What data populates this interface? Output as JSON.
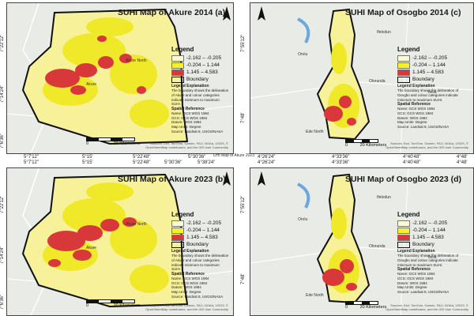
{
  "colors": {
    "low": "#fdfbd0",
    "mid": "#f2f12a",
    "high": "#d8383a",
    "boundary": "#111111"
  },
  "legend": {
    "title": "Legend",
    "classes": [
      {
        "label": "-2.162 – -0.205"
      },
      {
        "label": "-0.204 – 1.144"
      },
      {
        "label": "1.145 – 4.583"
      }
    ],
    "boundary": "Boundary",
    "explanation_title": "Legend Explanation",
    "explanation_akure": "The boundary shows the delineation of Akure and colour categories indicate minimum to maximum SUHI.",
    "explanation_osogbo": "The boundary shows the delineation of Osogbo and colour categories indicate minimum to maximum SUHI.",
    "spatial_title": "Spatial Reference",
    "spatial_lines": [
      "Name: GCS WGS 1984",
      "GCS: GCS WGS 1984",
      "Datum: WGS 1984",
      "Map Units: Degree"
    ],
    "source": "Source: Landsat 8, USGS/NASA"
  },
  "attribution": "Sources: Esri, TomTom, Garmin, FAO, NOAA, USGS, © OpenStreetMap contributors, and the GIS User Community",
  "scale": {
    "zero": "0",
    "label": "20 Kilometers"
  },
  "center_text": "UHI Map of Akure 2023",
  "panels": [
    {
      "key": "a",
      "title": "SUHI Map of Akure 2014  (a)",
      "xticks": [
        "5°7'12\"",
        "5°15'",
        "5°22'48\"",
        "5°30'36\""
      ],
      "yticks": [
        "7°22'12\"",
        "7°14'24\"",
        "7°6'36\""
      ],
      "places": [
        "Akure North",
        "Akure"
      ]
    },
    {
      "key": "c",
      "title": "SUHI Map of Osogbo 2014  (c)",
      "xticks": [
        "4°26'24\"",
        "4°33'36\"",
        "4°40'48\"",
        "4°48'"
      ],
      "yticks": [
        "7°55'12\"",
        "7°48'"
      ],
      "places": [
        "Orolu",
        "Ifelodun",
        "Olorunda",
        "Ede North",
        "Ilesa"
      ]
    },
    {
      "key": "b",
      "title": "SUHI Map of Akure 2023  (b)",
      "xticks_top": [
        "5°7'12\"",
        "5°15'",
        "5°22'48\"",
        "5°30'36\"",
        "5°38'24\""
      ],
      "yticks": [
        "7°22'12\"",
        "7°14'24\"",
        "7°6'36\""
      ],
      "places": [
        "Akure North",
        "Akure"
      ]
    },
    {
      "key": "d",
      "title": "SUHI Map of Osogbo 2023  (d)",
      "xticks_top": [
        "4°26'24\"",
        "4°33'36\"",
        "4°40'48\"",
        "4°48'"
      ],
      "yticks": [
        "7°55'12\"",
        "7°48'"
      ],
      "places": [
        "Orolu",
        "Ifelodun",
        "Olorunda",
        "Ede North",
        "Ilesa"
      ]
    }
  ]
}
